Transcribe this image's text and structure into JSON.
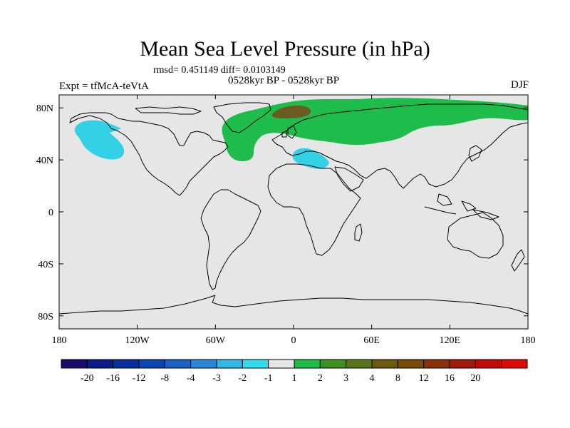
{
  "title": "Mean Sea Level Pressure (in hPa)",
  "stats": "rmsd= 0.451149 diff= 0.0103149",
  "left_label": "Expt = tfMcA-teVtA",
  "center_label": "0528kyr BP - 0528kyr BP",
  "right_label": "DJF",
  "map": {
    "background_color": "#e6e6e6",
    "lon_ticks": [
      {
        "lon": -180,
        "label": "180"
      },
      {
        "lon": -120,
        "label": "120W"
      },
      {
        "lon": -60,
        "label": "60W"
      },
      {
        "lon": 0,
        "label": "0"
      },
      {
        "lon": 60,
        "label": "60E"
      },
      {
        "lon": 120,
        "label": "120E"
      },
      {
        "lon": 180,
        "label": "180"
      }
    ],
    "lat_ticks": [
      {
        "lat": 80,
        "label": "80N"
      },
      {
        "lat": 40,
        "label": "40N"
      },
      {
        "lat": 0,
        "label": "0"
      },
      {
        "lat": -40,
        "label": "40S"
      },
      {
        "lat": -80,
        "label": "80S"
      }
    ],
    "anomaly_regions": [
      {
        "name": "north-pacific-negative",
        "level": "-2 to -1",
        "color": "#33d1e6"
      },
      {
        "name": "mediterranean-negative",
        "level": "-2 to -1",
        "color": "#33d1e6"
      },
      {
        "name": "eurasia-positive",
        "level": "1 to 2",
        "color": "#1ebc4a"
      },
      {
        "name": "scandinavia-positive",
        "level": "3 to 4",
        "color": "#6b5a22"
      }
    ]
  },
  "colorbar": {
    "colors": [
      "#1a0a6e",
      "#0d1a8a",
      "#0a2e9e",
      "#0a44b0",
      "#1a62c2",
      "#2a86d6",
      "#33b8e6",
      "#33dced",
      "#e6e6e6",
      "#1ebc4a",
      "#3e8e22",
      "#587418",
      "#6a5a10",
      "#7a4a08",
      "#8a3008",
      "#a01a0a",
      "#c00a0a",
      "#de0a0a"
    ],
    "labels": [
      "-20",
      "-16",
      "-12",
      "-8",
      "-4",
      "-3",
      "-2",
      "-1",
      "1",
      "2",
      "3",
      "4",
      "8",
      "12",
      "16",
      "20"
    ]
  }
}
